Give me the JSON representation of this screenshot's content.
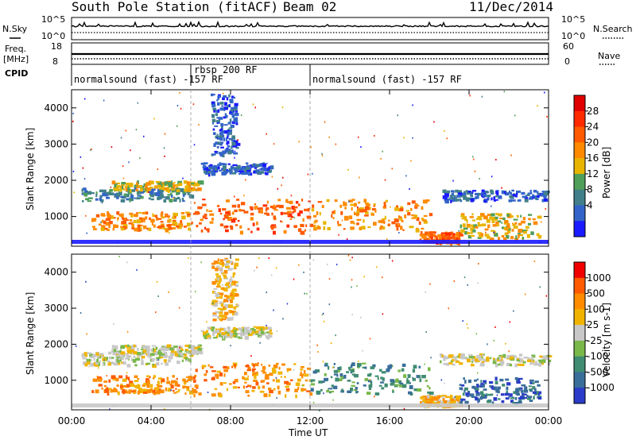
{
  "header": {
    "station": "South Pole Station (fitACF)",
    "beam": "Beam 02",
    "date": "11/Dec/2014"
  },
  "panels": {
    "nsky_label": "N.Sky",
    "nsearch_label": "N.Search",
    "noise_ticks": [
      "10^5",
      "10^0"
    ],
    "freq_label_1": "Freq.",
    "freq_label_2": "[MHz]",
    "freq_ticks": [
      "18",
      "8"
    ],
    "nave_label": "Nave",
    "nave_ticks": [
      "60",
      "0"
    ],
    "cpid_label": "CPID",
    "cpid_segments": [
      {
        "text": "normalsound (fast) -157 RF",
        "start_hour": 0
      },
      {
        "text": "rbsp 200 RF",
        "start_hour": 6
      },
      {
        "text": "normalsound (fast) -157 RF",
        "start_hour": 12
      }
    ]
  },
  "colorbars": {
    "power": {
      "label": "Power [dB]",
      "ticks": [
        "28",
        "24",
        "20",
        "16",
        "12",
        "8",
        "4"
      ],
      "colors": [
        "#1a1aff",
        "#3264c8",
        "#41808a",
        "#4f9f5a",
        "#e8b400",
        "#ff8a00",
        "#ff5a00",
        "#ff2a00",
        "#e00000"
      ]
    },
    "velocity": {
      "label": "Velocity [m s-1]",
      "ticks": [
        "1000",
        "500",
        "100",
        "25",
        "-25",
        "-100",
        "-500",
        "-1000"
      ],
      "colors": [
        "#2a3cc8",
        "#3a6e9a",
        "#3f8c72",
        "#7ab84a",
        "#c8c8c8",
        "#f0b400",
        "#ff8c00",
        "#ff5a00",
        "#f00000"
      ]
    }
  },
  "chart_data": [
    {
      "type": "heatmap",
      "title": "Power",
      "ylabel": "Slant Range [km]",
      "xlabel": "Time UT",
      "yticks": [
        "4000",
        "3000",
        "2000",
        "1000"
      ],
      "ylim": [
        180,
        4500
      ],
      "xlim_hours": [
        0,
        24
      ],
      "xticks": [
        "00:00",
        "04:00",
        "08:00",
        "12:00",
        "16:00",
        "20:00",
        "00:00"
      ],
      "bands": [
        {
          "t0": 0.5,
          "t1": 6.0,
          "r0": 1450,
          "r1": 1800,
          "c": 2
        },
        {
          "t0": 2.0,
          "t1": 6.5,
          "r0": 1750,
          "r1": 2000,
          "c": 4
        },
        {
          "t0": 1.0,
          "t1": 6.0,
          "r0": 650,
          "r1": 1150,
          "c": 5
        },
        {
          "t0": 6.0,
          "t1": 12.0,
          "r0": 600,
          "r1": 1500,
          "c": 6
        },
        {
          "t0": 12.0,
          "t1": 18.0,
          "r0": 650,
          "r1": 1500,
          "c": 5
        },
        {
          "t0": 17.5,
          "t1": 19.5,
          "r0": 300,
          "r1": 600,
          "c": 6
        },
        {
          "t0": 19.5,
          "t1": 23.5,
          "r0": 400,
          "r1": 1100,
          "c": 4
        },
        {
          "t0": 18.5,
          "t1": 24.0,
          "r0": 1450,
          "r1": 1750,
          "c": 1
        },
        {
          "t0": 7.0,
          "t1": 8.3,
          "r0": 2700,
          "r1": 4400,
          "c": 1
        },
        {
          "t0": 6.5,
          "t1": 10.0,
          "r0": 2200,
          "r1": 2500,
          "c": 1
        }
      ]
    },
    {
      "type": "heatmap",
      "title": "Velocity",
      "ylabel": "Slant Range [km]",
      "xlabel": "Time UT",
      "yticks": [
        "4000",
        "3000",
        "2000",
        "1000"
      ],
      "ylim": [
        180,
        4500
      ],
      "xlim_hours": [
        0,
        24
      ],
      "xticks": [
        "00:00",
        "04:00",
        "08:00",
        "12:00",
        "16:00",
        "20:00",
        "00:00"
      ],
      "bands": [
        {
          "t0": 0.5,
          "t1": 6.0,
          "r0": 1450,
          "r1": 1800,
          "c": 4
        },
        {
          "t0": 2.0,
          "t1": 6.5,
          "r0": 1750,
          "r1": 2000,
          "c": 4
        },
        {
          "t0": 1.0,
          "t1": 6.0,
          "r0": 650,
          "r1": 1150,
          "c": 6
        },
        {
          "t0": 6.0,
          "t1": 12.0,
          "r0": 600,
          "r1": 1500,
          "c": 6
        },
        {
          "t0": 12.0,
          "t1": 18.0,
          "r0": 650,
          "r1": 1500,
          "c": 2
        },
        {
          "t0": 17.5,
          "t1": 19.5,
          "r0": 300,
          "r1": 600,
          "c": 5
        },
        {
          "t0": 19.5,
          "t1": 23.5,
          "r0": 400,
          "r1": 1100,
          "c": 1
        },
        {
          "t0": 18.5,
          "t1": 24.0,
          "r0": 1450,
          "r1": 1750,
          "c": 4
        },
        {
          "t0": 7.0,
          "t1": 8.3,
          "r0": 2700,
          "r1": 4400,
          "c": 5
        },
        {
          "t0": 6.5,
          "t1": 10.0,
          "r0": 2200,
          "r1": 2500,
          "c": 4
        }
      ]
    }
  ]
}
